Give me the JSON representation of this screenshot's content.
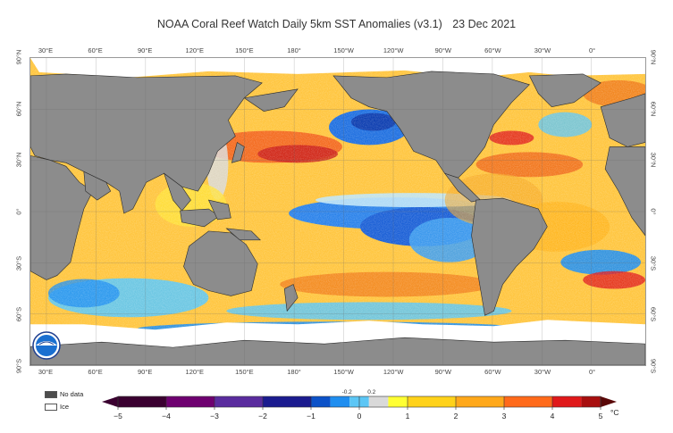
{
  "title": "NOAA Coral Reef Watch Daily 5km SST Anomalies  (v3.1)",
  "date": "23 Dec 2021",
  "longitude_labels": [
    "30°E",
    "60°E",
    "90°E",
    "120°E",
    "150°E",
    "180°",
    "150°W",
    "120°W",
    "90°W",
    "60°W",
    "30°W",
    "0°"
  ],
  "latitude_labels": [
    "90°N",
    "60°N",
    "30°N",
    "0°",
    "30°S",
    "60°S",
    "90°S"
  ],
  "legend_keys": {
    "no_data": "No data",
    "ice": "Ice"
  },
  "colorbar": {
    "ticks": [
      "−5",
      "−4",
      "−3",
      "−2",
      "−1",
      "0",
      "1",
      "2",
      "3",
      "4",
      "5"
    ],
    "threshold_labels": [
      "-0.2",
      "0.2"
    ],
    "unit": "°C",
    "range": [
      -5,
      5
    ],
    "colors": [
      "#3a0030",
      "#6e0070",
      "#5a2c9e",
      "#1b1b8f",
      "#0c52c8",
      "#1f8ef0",
      "#5cc6f5",
      "#d9d9d9",
      "#ffff33",
      "#ffd21a",
      "#ffa81a",
      "#ff6a1a",
      "#e0191a",
      "#a80f0f",
      "#5a0808"
    ]
  },
  "colors": {
    "land": "#8c8c8c",
    "no_data": "#4d4d4d",
    "ice": "#ffffff",
    "ocean_warm": "#ffc53d"
  },
  "logo_icon": "noaa-logo-icon"
}
